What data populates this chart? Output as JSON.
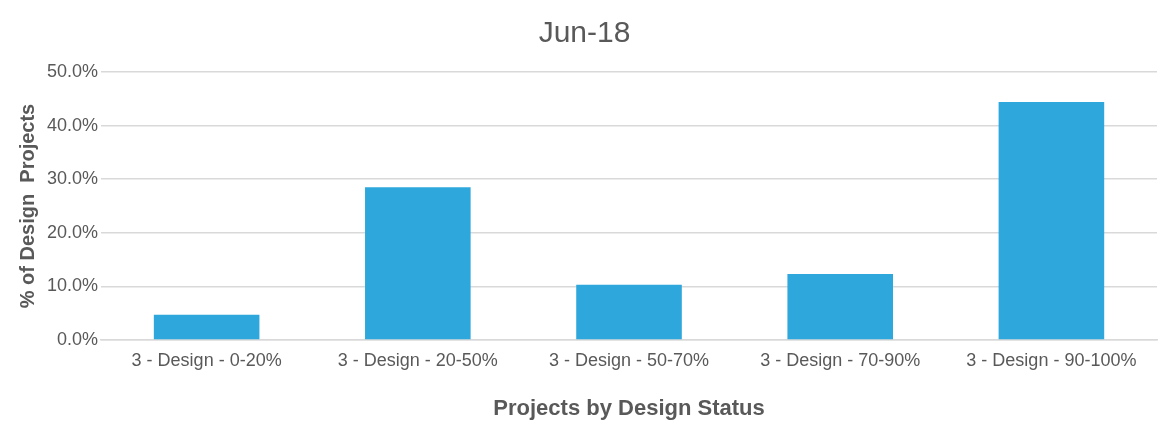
{
  "chart_data": {
    "type": "bar",
    "title": "Jun-18",
    "xlabel": "Projects by Design Status",
    "ylabel": "% of Design  Projects",
    "categories": [
      "3 - Design - 0-20%",
      "3 - Design - 20-50%",
      "3 - Design - 50-70%",
      "3 - Design - 70-90%",
      "3 - Design - 90-100%"
    ],
    "values": [
      4.7,
      28.5,
      10.3,
      12.3,
      44.4
    ],
    "color": "#2ea8dc",
    "ylim": [
      0,
      50
    ],
    "yticks": [
      {
        "value": 0,
        "label": "0.0%"
      },
      {
        "value": 10,
        "label": "10.0%"
      },
      {
        "value": 20,
        "label": "20.0%"
      },
      {
        "value": 30,
        "label": "30.0%"
      },
      {
        "value": 40,
        "label": "40.0%"
      },
      {
        "value": 50,
        "label": "50.0%"
      }
    ],
    "grid": "y",
    "legend": false
  }
}
